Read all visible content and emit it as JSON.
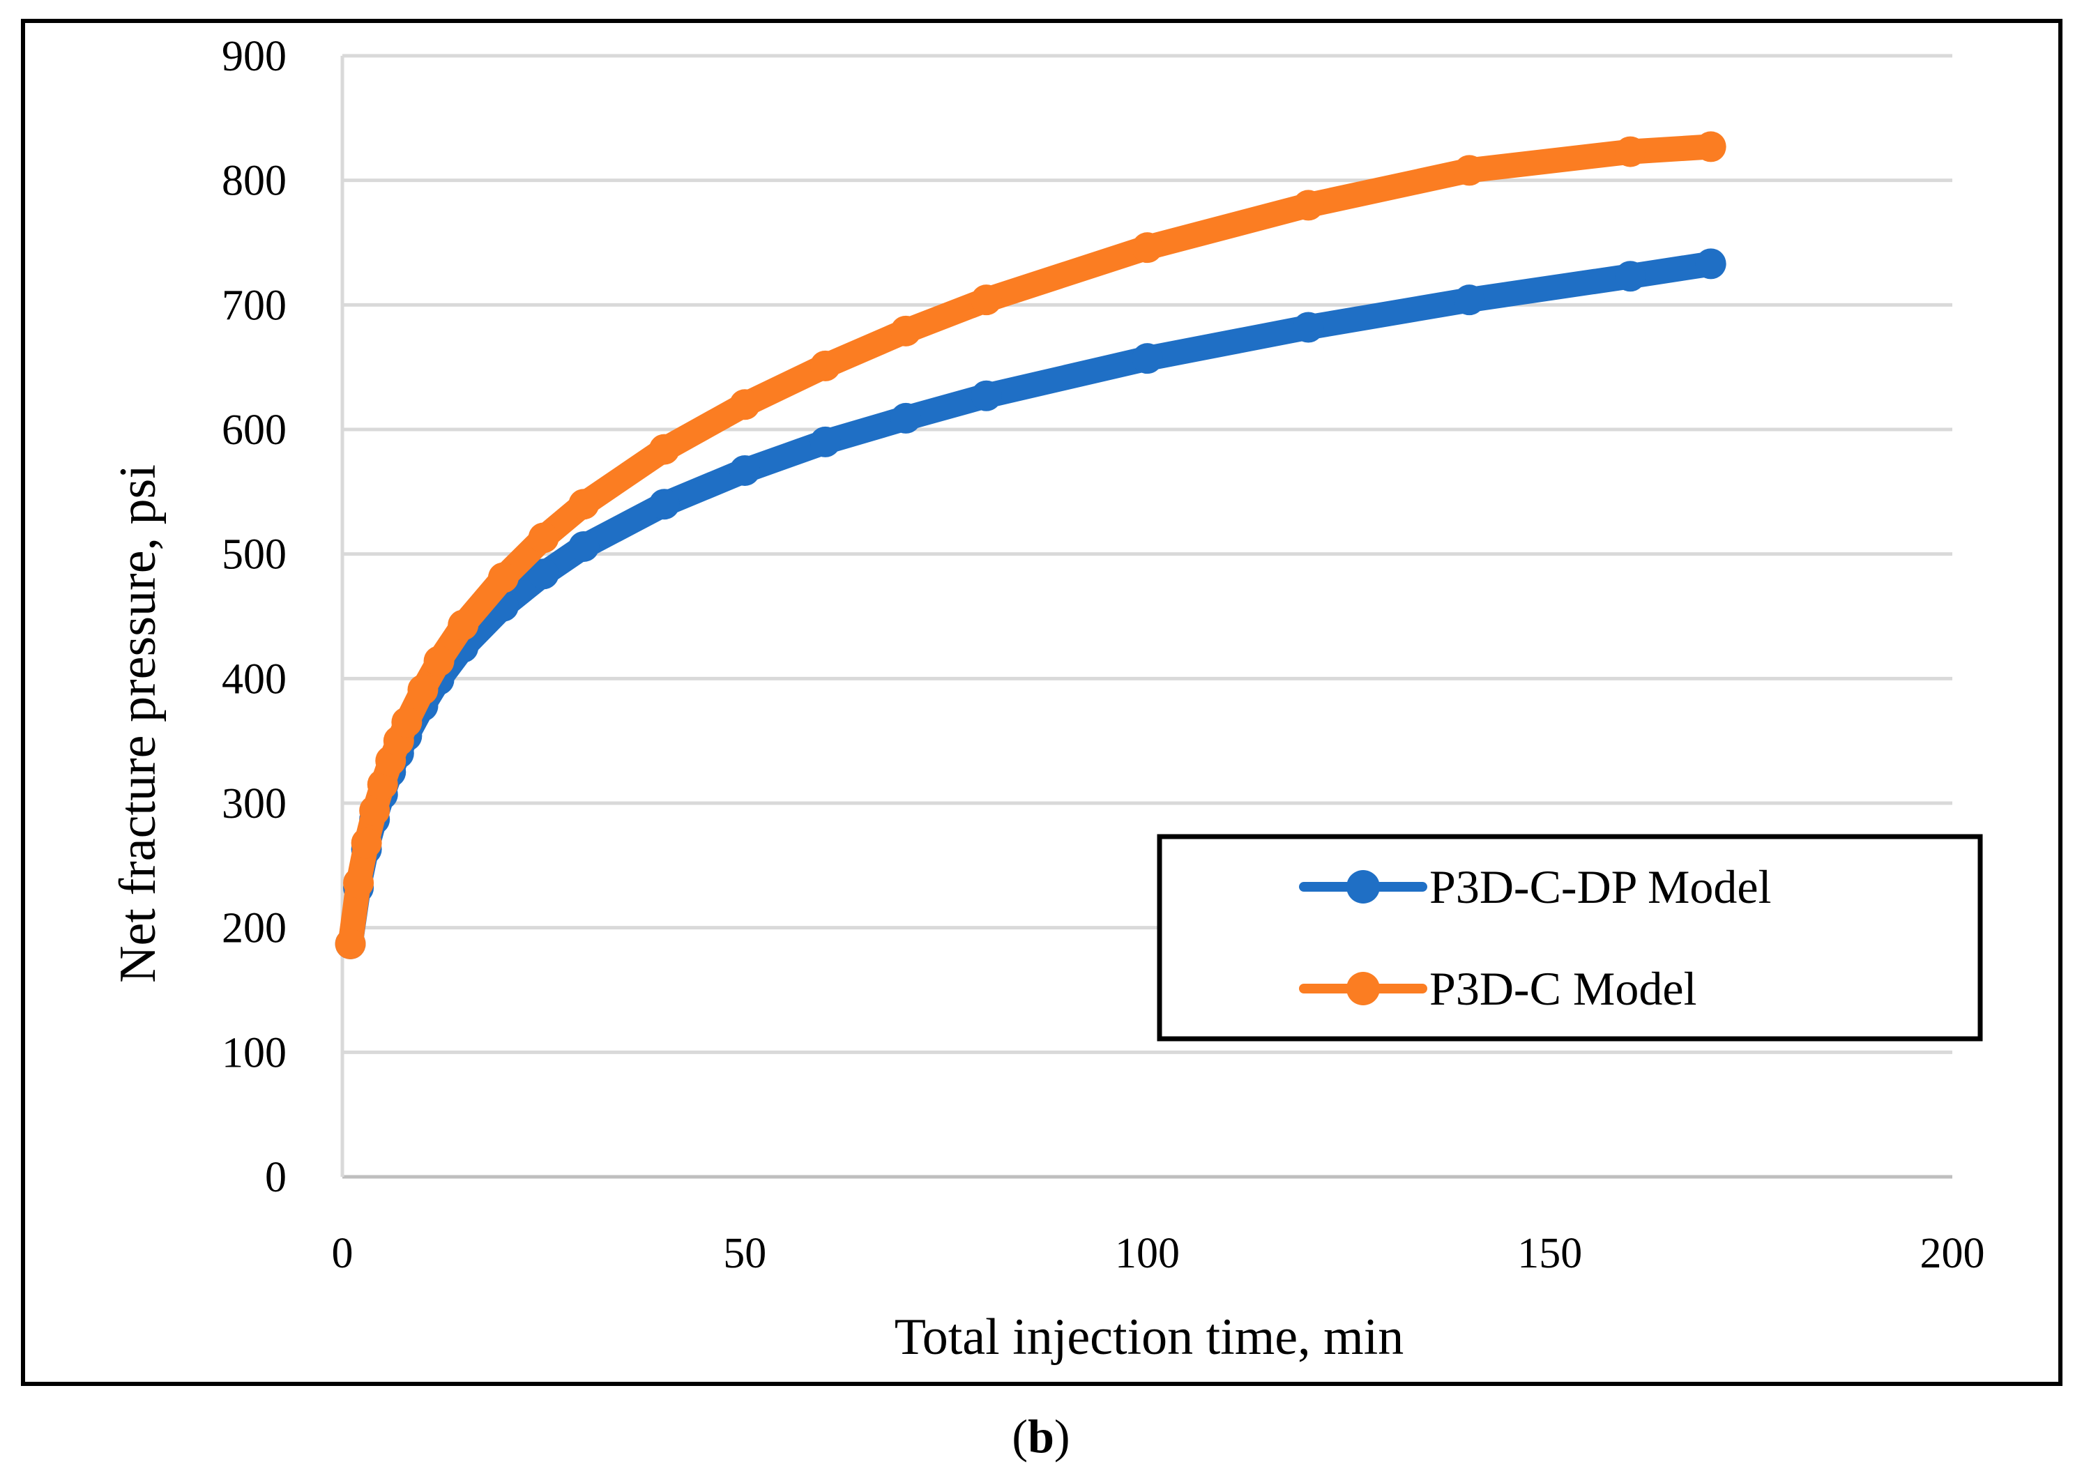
{
  "chart_data": {
    "type": "line",
    "title": "",
    "xlabel": "Total injection time, min",
    "ylabel": "Net fracture pressure, psi",
    "xlim": [
      0,
      200
    ],
    "ylim": [
      0,
      900
    ],
    "x_ticks": [
      "0",
      "50",
      "100",
      "150",
      "200"
    ],
    "y_ticks": [
      "0",
      "100",
      "200",
      "300",
      "400",
      "500",
      "600",
      "700",
      "800",
      "900"
    ],
    "grid": "horizontal",
    "legend_position": "lower-right",
    "series": [
      {
        "name": "P3D-C-DP Model",
        "color": "#1f6fc5",
        "markers": "circle",
        "x": [
          1,
          2,
          3,
          4,
          5,
          6,
          7,
          8,
          10,
          12,
          15,
          20,
          25,
          30,
          40,
          50,
          60,
          70,
          80,
          100,
          120,
          140,
          160,
          170
        ],
        "y": [
          187,
          232,
          263,
          287,
          307,
          325,
          340,
          354,
          378,
          399,
          425,
          458,
          484,
          506,
          540,
          567,
          590,
          609,
          627,
          657,
          682,
          704,
          723,
          733
        ]
      },
      {
        "name": "P3D-C Model",
        "color": "#fb7d22",
        "markers": "circle",
        "x": [
          1,
          2,
          3,
          4,
          5,
          6,
          7,
          8,
          10,
          12,
          15,
          20,
          25,
          30,
          40,
          50,
          60,
          70,
          80,
          100,
          120,
          140,
          160,
          170
        ],
        "y": [
          187,
          236,
          268,
          294,
          315,
          334,
          350,
          365,
          391,
          414,
          443,
          481,
          513,
          540,
          584,
          620,
          651,
          679,
          704,
          746,
          780,
          808,
          823,
          827
        ]
      }
    ]
  },
  "caption": {
    "open": "(",
    "letter": "b",
    "close": ")"
  }
}
